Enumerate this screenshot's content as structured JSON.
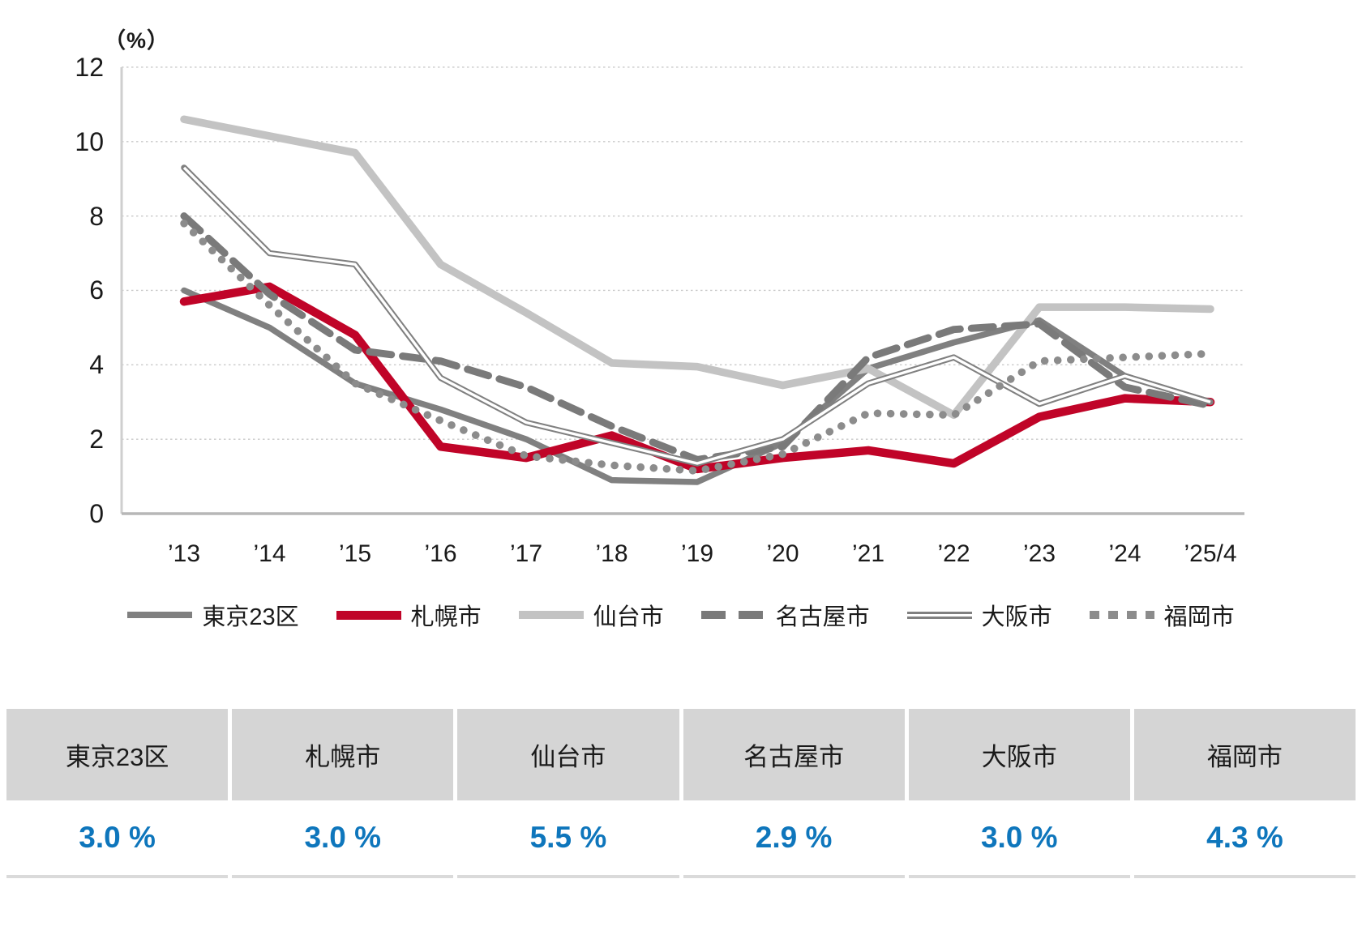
{
  "chart_data": {
    "type": "line",
    "title": "",
    "unit_label": "（%）",
    "ylabel": "%",
    "ylim": [
      0,
      12
    ],
    "grid": "horizontal-dotted",
    "legend_position": "bottom",
    "y_ticks": [
      "12",
      "10",
      "8",
      "6",
      "4",
      "2",
      "0"
    ],
    "y_tick_values": [
      12,
      10,
      8,
      6,
      4,
      2,
      0
    ],
    "x_labels": [
      "’13",
      "’14",
      "’15",
      "’16",
      "’17",
      "’18",
      "’19",
      "’20",
      "’21",
      "’22",
      "’23",
      "’24",
      "’25/4"
    ],
    "series": [
      {
        "name": "東京23区",
        "style": "solid-thick",
        "color": "#808080",
        "values": [
          6.0,
          5.0,
          3.5,
          2.8,
          2.0,
          0.9,
          0.85,
          1.9,
          3.9,
          4.6,
          5.2,
          3.7,
          3.0
        ]
      },
      {
        "name": "札幌市",
        "style": "solid-red",
        "color": "#c00428",
        "values": [
          5.7,
          6.1,
          4.8,
          1.8,
          1.5,
          2.1,
          1.2,
          1.5,
          1.7,
          1.35,
          2.6,
          3.1,
          3.0
        ]
      },
      {
        "name": "仙台市",
        "style": "solid-light",
        "color": "#c3c3c3",
        "values": [
          10.6,
          10.15,
          9.7,
          6.7,
          5.4,
          4.05,
          3.95,
          3.45,
          3.9,
          2.65,
          5.55,
          5.55,
          5.5
        ]
      },
      {
        "name": "名古屋市",
        "style": "dashed",
        "color": "#7a7a7a",
        "values": [
          8.0,
          5.9,
          4.4,
          4.1,
          3.4,
          2.35,
          1.45,
          1.8,
          4.2,
          4.95,
          5.1,
          3.4,
          2.9
        ]
      },
      {
        "name": "大阪市",
        "style": "double",
        "color": "#808080",
        "values": [
          9.3,
          7.0,
          6.7,
          3.65,
          2.45,
          1.9,
          1.35,
          2.0,
          3.5,
          4.2,
          2.95,
          3.7,
          3.0
        ]
      },
      {
        "name": "福岡市",
        "style": "dotted",
        "color": "#8c8c8c",
        "values": [
          7.8,
          5.6,
          3.5,
          2.5,
          1.55,
          1.3,
          1.15,
          1.6,
          2.7,
          2.65,
          4.1,
          4.2,
          4.3
        ]
      }
    ]
  },
  "table": {
    "columns": [
      {
        "label": "東京23区",
        "value": "3.0 %"
      },
      {
        "label": "札幌市",
        "value": "3.0 %"
      },
      {
        "label": "仙台市",
        "value": "5.5 %"
      },
      {
        "label": "名古屋市",
        "value": "2.9 %"
      },
      {
        "label": "大阪市",
        "value": "3.0 %"
      },
      {
        "label": "福岡市",
        "value": "4.3 %"
      }
    ]
  },
  "colors": {
    "accent_red": "#c00428",
    "value_blue": "#0e76bc",
    "gridline": "#c9c9c9",
    "axis_line": "#b7b7b7",
    "table_header_bg": "#d5d5d5"
  }
}
